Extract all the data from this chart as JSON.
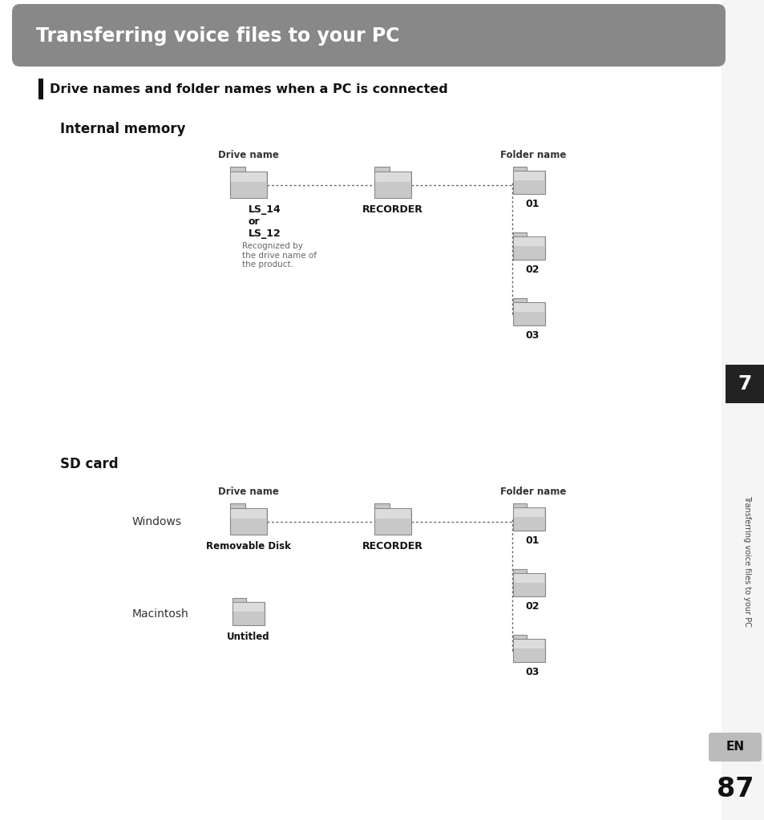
{
  "title": "Transferring voice files to your PC",
  "title_bg": "#888888",
  "title_text_color": "#ffffff",
  "section_header": "Drive names and folder names when a PC is connected",
  "subsection1": "Internal memory",
  "subsection2": "SD card",
  "drive_name_label": "Drive name",
  "folder_name_label": "Folder name",
  "internal_drive_label": "LS_14\nor\nLS_12",
  "internal_drive_sublabel": "Recognized by\nthe drive name of\nthe product.",
  "internal_recorder_label": "RECORDER",
  "internal_folders": [
    "01",
    "02",
    "03"
  ],
  "sd_windows_label": "Windows",
  "sd_windows_drive": "Removable Disk",
  "sd_recorder_label": "RECORDER",
  "sd_mac_label": "Macintosh",
  "sd_mac_drive": "Untitled",
  "sd_folders": [
    "01",
    "02",
    "03"
  ],
  "sidebar_text": "Transferring voice files to your PC",
  "sidebar_number": "7",
  "en_label": "EN",
  "page_number": "87",
  "bg_color": "#ffffff"
}
